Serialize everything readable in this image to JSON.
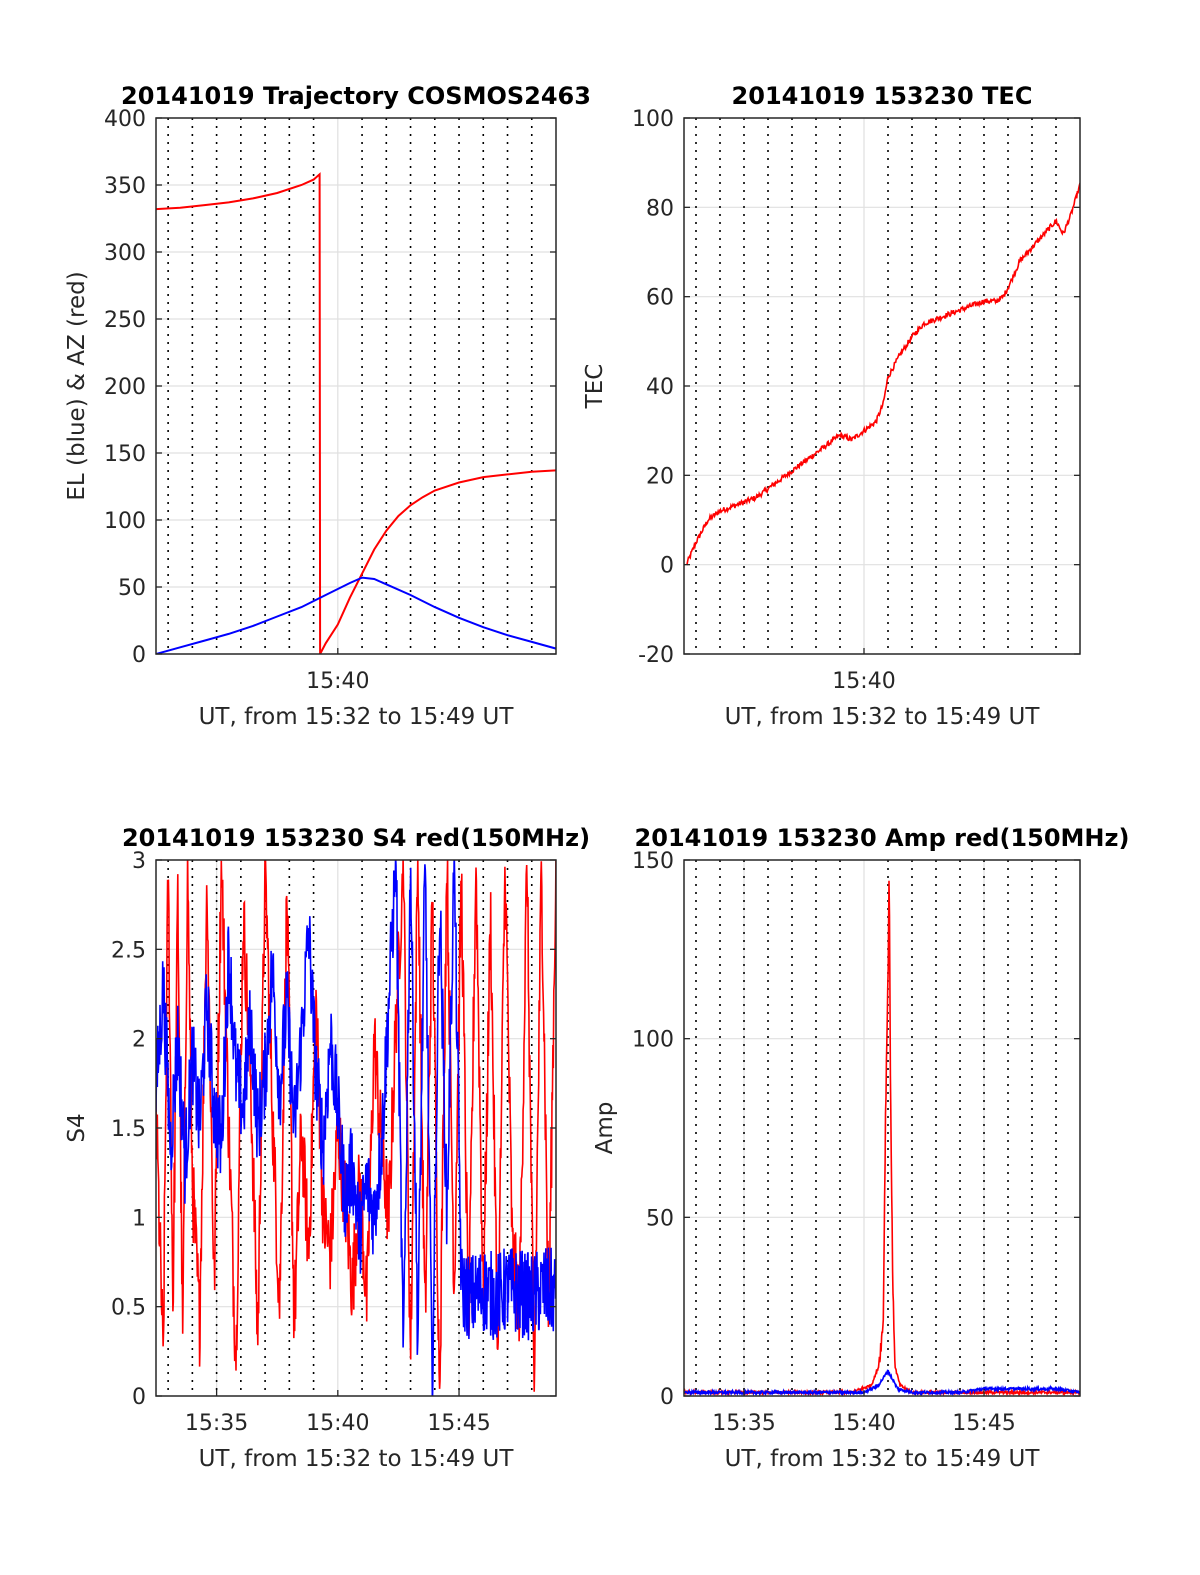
{
  "chart_data": [
    {
      "type": "line",
      "title": "20141019 Trajectory COSMOS2463",
      "xlabel": "UT, from 15:32 to 15:49 UT",
      "ylabel": "EL (blue) & AZ (red)",
      "x_range": [
        "15:32:30",
        "15:49:00"
      ],
      "ylim": [
        0,
        400
      ],
      "yticks": [
        0,
        50,
        100,
        150,
        200,
        250,
        300,
        350,
        400
      ],
      "xtick_labels": [
        "15:40"
      ],
      "xtick_minutes": [
        40.0
      ],
      "grid": true,
      "series": [
        {
          "color": "#ff0000",
          "x_minutes": [
            32.5,
            33.5,
            34.5,
            35.5,
            36.5,
            37.5,
            38.5,
            39.0,
            39.25,
            39.27,
            39.5,
            40.0,
            40.5,
            41.0,
            41.5,
            42.0,
            42.5,
            43.0,
            43.5,
            44.0,
            45.0,
            46.0,
            47.0,
            48.0,
            49.0
          ],
          "values": [
            332,
            333,
            335,
            337,
            340,
            344,
            350,
            354,
            358,
            0,
            8,
            22,
            42,
            60,
            78,
            92,
            103,
            111,
            117,
            122,
            128,
            132,
            134,
            136,
            137
          ]
        },
        {
          "color": "#0000ff",
          "x_minutes": [
            32.5,
            33.5,
            34.5,
            35.5,
            36.5,
            37.5,
            38.5,
            39.5,
            40.5,
            41.0,
            41.5,
            42.0,
            43.0,
            44.0,
            45.0,
            46.0,
            47.0,
            48.0,
            49.0
          ],
          "values": [
            0,
            5,
            10,
            15,
            21,
            28,
            35,
            44,
            53,
            57,
            56,
            52,
            44,
            35,
            27,
            20,
            14,
            9,
            4
          ]
        }
      ]
    },
    {
      "type": "line",
      "title": "20141019 153230 TEC",
      "xlabel": "UT, from 15:32 to 15:49 UT",
      "ylabel": "TEC",
      "x_range": [
        "15:32:30",
        "15:49:00"
      ],
      "ylim": [
        -20,
        100
      ],
      "yticks": [
        -20,
        0,
        20,
        40,
        60,
        80,
        100
      ],
      "xtick_labels": [
        "15:40"
      ],
      "xtick_minutes": [
        40.0
      ],
      "grid": true,
      "series": [
        {
          "color": "#ff0000",
          "x_minutes": [
            32.6,
            33.0,
            33.5,
            34.0,
            34.5,
            35.0,
            35.5,
            36.0,
            36.5,
            37.0,
            37.5,
            38.0,
            38.5,
            39.0,
            39.5,
            40.0,
            40.5,
            40.8,
            41.0,
            41.5,
            42.0,
            42.5,
            43.0,
            43.5,
            44.0,
            44.5,
            45.0,
            45.5,
            45.8,
            46.0,
            46.5,
            47.0,
            47.5,
            48.0,
            48.3,
            48.6,
            49.0
          ],
          "values": [
            0,
            5,
            10,
            12,
            13,
            14,
            15,
            17,
            19,
            21,
            23,
            25,
            27,
            29,
            28,
            30,
            32,
            36,
            42,
            47,
            51,
            54,
            55,
            56,
            57,
            58,
            59,
            59,
            60,
            62,
            68,
            71,
            74,
            77,
            74,
            78,
            85
          ]
        }
      ]
    },
    {
      "type": "line",
      "title": "20141019 153230 S4 red(150MHz)",
      "xlabel": "UT, from 15:32 to 15:49 UT",
      "ylabel": "S4",
      "x_range": [
        "15:32:30",
        "15:49:00"
      ],
      "ylim": [
        0,
        3
      ],
      "yticks": [
        0,
        0.5,
        1,
        1.5,
        2,
        2.5,
        3
      ],
      "xtick_labels": [
        "15:35",
        "15:40",
        "15:45"
      ],
      "xtick_minutes": [
        35.0,
        40.0,
        45.0
      ],
      "grid": true,
      "series": [
        {
          "color": "#ff0000",
          "x_minutes": [
            32.5,
            32.8,
            33.0,
            33.2,
            33.4,
            33.6,
            33.8,
            34.0,
            34.3,
            34.6,
            34.9,
            35.2,
            35.5,
            35.8,
            36.1,
            36.4,
            36.7,
            37.0,
            37.3,
            37.6,
            37.9,
            38.2,
            38.5,
            38.8,
            39.1,
            39.4,
            39.7,
            40.0,
            40.3,
            40.6,
            40.9,
            41.2,
            41.5,
            41.8,
            42.1,
            42.4,
            42.7,
            43.0,
            43.3,
            43.6,
            43.9,
            44.2,
            44.5,
            44.8,
            45.1,
            45.4,
            45.7,
            46.0,
            46.3,
            46.6,
            46.9,
            47.2,
            47.5,
            47.8,
            48.1,
            48.4,
            48.7,
            49.0
          ],
          "values": [
            1.6,
            0.2,
            3.0,
            0.5,
            2.8,
            0.3,
            3.0,
            1.2,
            0.4,
            2.9,
            0.6,
            3.0,
            1.5,
            0.2,
            2.7,
            1.8,
            0.3,
            3.0,
            1.6,
            0.5,
            2.8,
            0.4,
            1.5,
            0.8,
            2.2,
            1.0,
            0.8,
            1.5,
            1.1,
            0.6,
            1.2,
            0.5,
            2.0,
            1.4,
            1.0,
            2.1,
            3.0,
            0.2,
            3.0,
            0.4,
            2.8,
            0.0,
            3.0,
            0.6,
            2.9,
            0.3,
            3.0,
            0.5,
            2.7,
            0.2,
            3.0,
            0.8,
            0.5,
            3.0,
            0.0,
            3.0,
            0.4,
            3.0
          ]
        },
        {
          "color": "#0000ff",
          "x_minutes": [
            32.5,
            32.8,
            33.1,
            33.4,
            33.7,
            34.0,
            34.3,
            34.6,
            34.9,
            35.2,
            35.5,
            35.8,
            36.1,
            36.4,
            36.7,
            37.0,
            37.3,
            37.6,
            37.9,
            38.2,
            38.5,
            38.8,
            39.1,
            39.4,
            39.7,
            40.0,
            40.3,
            40.6,
            40.9,
            41.2,
            41.5,
            41.8,
            42.1,
            42.4,
            42.7,
            43.0,
            43.3,
            43.6,
            43.9,
            44.2,
            44.5,
            44.8,
            45.1,
            45.5,
            46.0,
            46.5,
            47.0,
            47.5,
            48.0,
            48.5,
            49.0
          ],
          "values": [
            1.7,
            2.3,
            1.4,
            2.0,
            1.3,
            1.9,
            1.5,
            2.2,
            1.6,
            1.4,
            2.5,
            1.8,
            1.6,
            2.1,
            1.5,
            1.8,
            2.4,
            1.7,
            2.2,
            1.5,
            2.0,
            2.6,
            1.8,
            1.4,
            2.0,
            1.6,
            1.1,
            1.3,
            0.9,
            1.2,
            1.0,
            1.4,
            2.2,
            3.0,
            0.2,
            3.0,
            0.3,
            3.0,
            0.0,
            2.8,
            1.0,
            3.0,
            0.6,
            0.55,
            0.6,
            0.55,
            0.6,
            0.58,
            0.55,
            0.6,
            0.57
          ]
        }
      ]
    },
    {
      "type": "line",
      "title": "20141019 153230 Amp red(150MHz)",
      "xlabel": "UT, from 15:32 to 15:49 UT",
      "ylabel": "Amp",
      "x_range": [
        "15:32:30",
        "15:49:00"
      ],
      "ylim": [
        0,
        150
      ],
      "yticks": [
        0,
        50,
        100,
        150
      ],
      "xtick_labels": [
        "15:35",
        "15:40",
        "15:45"
      ],
      "xtick_minutes": [
        35.0,
        40.0,
        45.0
      ],
      "grid": true,
      "series": [
        {
          "color": "#ff0000",
          "x_minutes": [
            32.5,
            34.0,
            36.0,
            38.0,
            39.5,
            40.3,
            40.6,
            40.8,
            40.9,
            41.0,
            41.05,
            41.1,
            41.2,
            41.3,
            41.5,
            42.0,
            44.0,
            46.0,
            49.0
          ],
          "values": [
            1,
            1,
            1,
            1,
            1,
            3,
            8,
            20,
            80,
            118,
            148,
            90,
            30,
            8,
            3,
            1,
            1,
            1,
            1
          ]
        },
        {
          "color": "#0000ff",
          "x_minutes": [
            32.5,
            34.0,
            36.0,
            38.0,
            40.0,
            40.6,
            41.0,
            41.4,
            42.0,
            44.0,
            45.0,
            46.0,
            47.0,
            48.0,
            49.0
          ],
          "values": [
            1,
            1,
            1,
            1,
            1,
            3,
            7,
            2,
            1,
            1,
            2,
            2,
            2,
            2,
            1
          ]
        }
      ]
    }
  ]
}
